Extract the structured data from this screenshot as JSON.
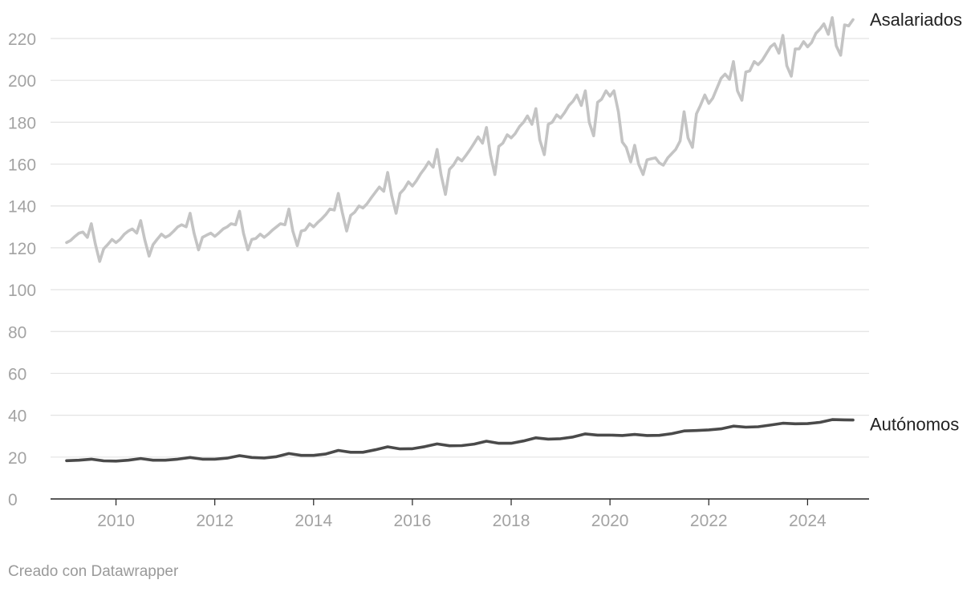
{
  "chart_data": {
    "type": "line",
    "title": "",
    "xlabel": "",
    "ylabel": "",
    "ylim": [
      0,
      230
    ],
    "xlim": [
      2009.0,
      2025.0
    ],
    "y_ticks": [
      0,
      20,
      40,
      60,
      80,
      100,
      120,
      140,
      160,
      180,
      200,
      220
    ],
    "x_ticks": [
      2010,
      2012,
      2014,
      2016,
      2018,
      2020,
      2022,
      2024
    ],
    "grid": "horizontal",
    "legend": "direct-labels-right",
    "series": [
      {
        "name": "Asalariados",
        "color": "#c4c4c4",
        "x": [
          2009.0,
          2009.08,
          2009.17,
          2009.25,
          2009.33,
          2009.42,
          2009.5,
          2009.58,
          2009.67,
          2009.75,
          2009.83,
          2009.92,
          2010.0,
          2010.08,
          2010.17,
          2010.25,
          2010.33,
          2010.42,
          2010.5,
          2010.58,
          2010.67,
          2010.75,
          2010.83,
          2010.92,
          2011.0,
          2011.08,
          2011.17,
          2011.25,
          2011.33,
          2011.42,
          2011.5,
          2011.58,
          2011.67,
          2011.75,
          2011.83,
          2011.92,
          2012.0,
          2012.08,
          2012.17,
          2012.25,
          2012.33,
          2012.42,
          2012.5,
          2012.58,
          2012.67,
          2012.75,
          2012.83,
          2012.92,
          2013.0,
          2013.08,
          2013.17,
          2013.25,
          2013.33,
          2013.42,
          2013.5,
          2013.58,
          2013.67,
          2013.75,
          2013.83,
          2013.92,
          2014.0,
          2014.08,
          2014.17,
          2014.25,
          2014.33,
          2014.42,
          2014.5,
          2014.58,
          2014.67,
          2014.75,
          2014.83,
          2014.92,
          2015.0,
          2015.08,
          2015.17,
          2015.25,
          2015.33,
          2015.42,
          2015.5,
          2015.58,
          2015.67,
          2015.75,
          2015.83,
          2015.92,
          2016.0,
          2016.08,
          2016.17,
          2016.25,
          2016.33,
          2016.42,
          2016.5,
          2016.58,
          2016.67,
          2016.75,
          2016.83,
          2016.92,
          2017.0,
          2017.08,
          2017.17,
          2017.25,
          2017.33,
          2017.42,
          2017.5,
          2017.58,
          2017.67,
          2017.75,
          2017.83,
          2017.92,
          2018.0,
          2018.08,
          2018.17,
          2018.25,
          2018.33,
          2018.42,
          2018.5,
          2018.58,
          2018.67,
          2018.75,
          2018.83,
          2018.92,
          2019.0,
          2019.08,
          2019.17,
          2019.25,
          2019.33,
          2019.42,
          2019.5,
          2019.58,
          2019.67,
          2019.75,
          2019.83,
          2019.92,
          2020.0,
          2020.08,
          2020.17,
          2020.25,
          2020.33,
          2020.42,
          2020.5,
          2020.58,
          2020.67,
          2020.75,
          2020.83,
          2020.92,
          2021.0,
          2021.08,
          2021.17,
          2021.25,
          2021.33,
          2021.42,
          2021.5,
          2021.58,
          2021.67,
          2021.75,
          2021.83,
          2021.92,
          2022.0,
          2022.08,
          2022.17,
          2022.25,
          2022.33,
          2022.42,
          2022.5,
          2022.58,
          2022.67,
          2022.75,
          2022.83,
          2022.92,
          2023.0,
          2023.08,
          2023.17,
          2023.25,
          2023.33,
          2023.42,
          2023.5,
          2023.58,
          2023.67,
          2023.75,
          2023.83,
          2023.92,
          2024.0,
          2024.08,
          2024.17,
          2024.25,
          2024.33,
          2024.42,
          2024.5,
          2024.58,
          2024.67,
          2024.75,
          2024.83,
          2024.92
        ],
        "values": [
          122.5,
          123.5,
          125.5,
          127,
          127.5,
          125,
          131.5,
          122,
          113.5,
          119.5,
          121.5,
          124,
          122.5,
          124,
          126.5,
          128,
          129,
          127,
          133,
          124,
          116,
          121.5,
          124,
          126.5,
          125,
          126,
          128,
          130,
          131,
          130,
          136.5,
          127,
          119,
          125,
          126,
          127,
          125.5,
          127,
          129,
          130,
          131.5,
          131,
          137.5,
          127,
          119,
          124,
          124.5,
          126.5,
          125,
          126.5,
          128.5,
          130,
          131.5,
          131,
          138.5,
          128,
          121,
          128,
          128.5,
          131.5,
          130,
          132,
          134,
          136,
          138.5,
          138,
          146,
          137,
          128,
          135.5,
          137,
          140,
          139,
          141,
          144,
          146.5,
          149,
          147,
          156,
          145,
          136.5,
          146,
          148,
          151.5,
          149.5,
          152,
          155.5,
          158,
          161,
          158.5,
          167,
          155,
          145.5,
          157.5,
          159.5,
          163,
          161.5,
          164,
          167,
          170,
          173,
          170,
          177.5,
          164.5,
          155,
          168.5,
          170,
          174,
          172.5,
          174.5,
          178,
          180,
          183,
          179,
          186.5,
          171.5,
          164.5,
          179,
          180,
          183.5,
          182,
          184.5,
          188,
          190,
          193,
          188,
          195,
          180,
          173.5,
          189.5,
          191,
          195,
          192.5,
          195,
          185,
          170.5,
          168,
          161,
          169,
          160,
          155,
          162,
          162.5,
          163,
          160.5,
          159.5,
          163,
          165,
          167,
          171,
          185,
          172.5,
          168,
          184,
          188,
          193,
          189,
          191.5,
          196.5,
          201,
          203,
          200.5,
          209,
          195,
          190.5,
          204,
          204.5,
          209,
          207.5,
          209.5,
          213,
          216,
          217.5,
          213,
          221.5,
          207,
          202,
          215,
          215,
          218.5,
          216,
          218,
          222.5,
          224.5,
          227,
          222,
          230,
          216.5,
          212,
          226.5,
          226,
          229
        ]
      },
      {
        "name": "Autónomos",
        "color": "#4a4a4a",
        "x": [
          2009.0,
          2009.25,
          2009.5,
          2009.75,
          2010.0,
          2010.25,
          2010.5,
          2010.75,
          2011.0,
          2011.25,
          2011.5,
          2011.75,
          2012.0,
          2012.25,
          2012.5,
          2012.75,
          2013.0,
          2013.25,
          2013.5,
          2013.75,
          2014.0,
          2014.25,
          2014.5,
          2014.75,
          2015.0,
          2015.25,
          2015.5,
          2015.75,
          2016.0,
          2016.25,
          2016.5,
          2016.75,
          2017.0,
          2017.25,
          2017.5,
          2017.75,
          2018.0,
          2018.25,
          2018.5,
          2018.75,
          2019.0,
          2019.25,
          2019.5,
          2019.75,
          2020.0,
          2020.25,
          2020.5,
          2020.75,
          2021.0,
          2021.25,
          2021.5,
          2021.75,
          2022.0,
          2022.25,
          2022.5,
          2022.75,
          2023.0,
          2023.25,
          2023.5,
          2023.75,
          2024.0,
          2024.25,
          2024.5,
          2024.75,
          2024.92
        ],
        "values": [
          18.3,
          18.5,
          19,
          18.2,
          18.1,
          18.5,
          19.3,
          18.5,
          18.5,
          19,
          19.8,
          19,
          19,
          19.5,
          20.7,
          19.8,
          19.6,
          20.2,
          21.7,
          20.8,
          20.8,
          21.5,
          23.2,
          22.3,
          22.3,
          23.5,
          24.9,
          23.9,
          24,
          25,
          26.3,
          25.4,
          25.5,
          26.2,
          27.6,
          26.6,
          26.6,
          27.7,
          29.2,
          28.6,
          28.8,
          29.6,
          31.1,
          30.5,
          30.5,
          30.3,
          30.8,
          30.3,
          30.4,
          31.2,
          32.5,
          32.7,
          33,
          33.5,
          34.8,
          34.3,
          34.5,
          35.3,
          36.2,
          35.9,
          36,
          36.6,
          37.9,
          37.8,
          37.7
        ]
      }
    ]
  },
  "footer": {
    "credit": "Creado con Datawrapper"
  }
}
